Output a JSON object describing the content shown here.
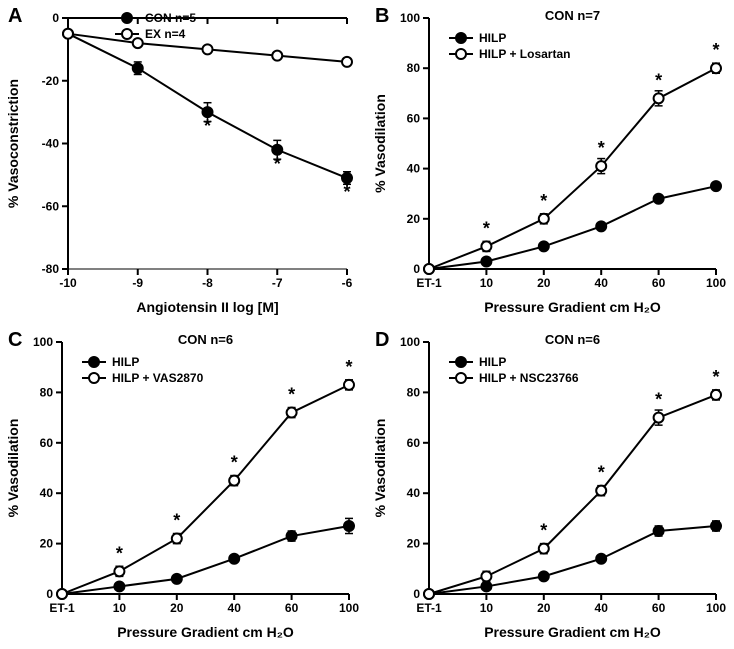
{
  "colors": {
    "stroke": "#000000",
    "filled_marker": "#000000",
    "open_marker_fill": "#ffffff",
    "open_marker_stroke": "#000000",
    "background": "#ffffff"
  },
  "panelA": {
    "letter": "A",
    "type": "line",
    "title": "",
    "xlabel": "Angiotensin II log [M]",
    "ylabel": "% Vasoconstriction",
    "xlim": [
      -10,
      -6
    ],
    "ylim": [
      -80,
      0
    ],
    "xticks": [
      -10,
      -9,
      -8,
      -7,
      -6
    ],
    "yticks": [
      -80,
      -60,
      -40,
      -20,
      0
    ],
    "legend": [
      {
        "label": "CON n=5",
        "marker": "filled"
      },
      {
        "label": "EX n=4",
        "marker": "open"
      }
    ],
    "series": [
      {
        "name": "CON",
        "marker": "filled",
        "x": [
          -10,
          -9,
          -8,
          -7,
          -6
        ],
        "y": [
          -5,
          -16,
          -30,
          -42,
          -51
        ],
        "err": [
          0,
          2,
          3,
          3,
          2
        ],
        "sig": [
          false,
          false,
          true,
          true,
          true
        ]
      },
      {
        "name": "EX",
        "marker": "open",
        "x": [
          -10,
          -9,
          -8,
          -7,
          -6
        ],
        "y": [
          -5,
          -8,
          -10,
          -12,
          -14
        ],
        "err": [
          0,
          0,
          0,
          0,
          0
        ],
        "sig": [
          false,
          false,
          false,
          false,
          false
        ]
      }
    ],
    "label_fontsize": 14,
    "tick_fontsize": 12,
    "line_width": 2,
    "marker_size": 5
  },
  "panelB": {
    "letter": "B",
    "type": "line",
    "title": "CON n=7",
    "xlabel": "Pressure Gradient cm H₂O",
    "ylabel": "% Vasodilation",
    "xcats": [
      "ET-1",
      "10",
      "20",
      "40",
      "60",
      "100"
    ],
    "ylim": [
      0,
      100
    ],
    "yticks": [
      0,
      20,
      40,
      60,
      80,
      100
    ],
    "legend": [
      {
        "label": "HILP",
        "marker": "filled"
      },
      {
        "label": "HILP + Losartan",
        "marker": "open"
      }
    ],
    "series": [
      {
        "name": "HILP",
        "marker": "filled",
        "y": [
          0,
          3,
          9,
          17,
          28,
          33
        ],
        "err": [
          0,
          0,
          0,
          0,
          0,
          0
        ],
        "sig": [
          false,
          false,
          false,
          false,
          false,
          false
        ]
      },
      {
        "name": "HILP + Losartan",
        "marker": "open",
        "y": [
          0,
          9,
          20,
          41,
          68,
          80
        ],
        "err": [
          0,
          2,
          2,
          3,
          3,
          2
        ],
        "sig": [
          false,
          true,
          true,
          true,
          true,
          true
        ]
      }
    ],
    "label_fontsize": 14,
    "tick_fontsize": 12,
    "line_width": 2,
    "marker_size": 5
  },
  "panelC": {
    "letter": "C",
    "type": "line",
    "title": "CON n=6",
    "xlabel": "Pressure Gradient cm H₂O",
    "ylabel": "% Vasodilation",
    "xcats": [
      "ET-1",
      "10",
      "20",
      "40",
      "60",
      "100"
    ],
    "ylim": [
      0,
      100
    ],
    "yticks": [
      0,
      20,
      40,
      60,
      80,
      100
    ],
    "legend": [
      {
        "label": "HILP",
        "marker": "filled"
      },
      {
        "label": "HILP + VAS2870",
        "marker": "open"
      }
    ],
    "series": [
      {
        "name": "HILP",
        "marker": "filled",
        "y": [
          0,
          3,
          6,
          14,
          23,
          27
        ],
        "err": [
          0,
          0,
          0,
          0,
          2,
          3
        ],
        "sig": [
          false,
          false,
          false,
          false,
          false,
          false
        ]
      },
      {
        "name": "HILP + VAS2870",
        "marker": "open",
        "y": [
          0,
          9,
          22,
          45,
          72,
          83
        ],
        "err": [
          0,
          2,
          2,
          2,
          2,
          2
        ],
        "sig": [
          false,
          true,
          true,
          true,
          true,
          true
        ]
      }
    ],
    "label_fontsize": 14,
    "tick_fontsize": 12,
    "line_width": 2,
    "marker_size": 5
  },
  "panelD": {
    "letter": "D",
    "type": "line",
    "title": "CON n=6",
    "xlabel": "Pressure Gradient cm H₂O",
    "ylabel": "% Vasodilation",
    "xcats": [
      "ET-1",
      "10",
      "20",
      "40",
      "60",
      "100"
    ],
    "ylim": [
      0,
      100
    ],
    "yticks": [
      0,
      20,
      40,
      60,
      80,
      100
    ],
    "legend": [
      {
        "label": "HILP",
        "marker": "filled"
      },
      {
        "label": "HILP + NSC23766",
        "marker": "open"
      }
    ],
    "series": [
      {
        "name": "HILP",
        "marker": "filled",
        "y": [
          0,
          3,
          7,
          14,
          25,
          27
        ],
        "err": [
          0,
          0,
          0,
          0,
          2,
          2
        ],
        "sig": [
          false,
          false,
          false,
          false,
          false,
          false
        ]
      },
      {
        "name": "HILP + NSC23766",
        "marker": "open",
        "y": [
          0,
          7,
          18,
          41,
          70,
          79
        ],
        "err": [
          0,
          2,
          2,
          2,
          3,
          2
        ],
        "sig": [
          false,
          false,
          true,
          true,
          true,
          true
        ]
      }
    ],
    "label_fontsize": 14,
    "tick_fontsize": 12,
    "line_width": 2,
    "marker_size": 5
  }
}
